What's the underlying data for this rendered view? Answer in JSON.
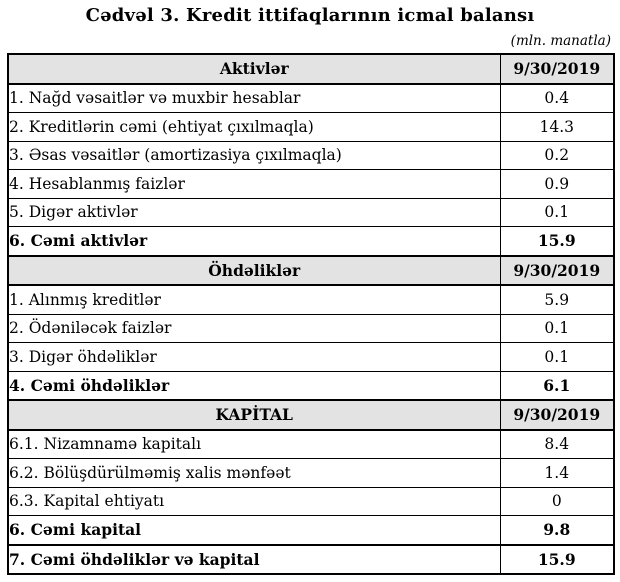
{
  "page": {
    "title": "Cədvəl 3. Kredit ittifaqlarının icmal balansı",
    "unit_note": "(mln. manatla)"
  },
  "colors": {
    "section_header_bg": "#e3e3e3",
    "border": "#000000",
    "text": "#000000"
  },
  "table": {
    "sections": [
      {
        "header_label": "Aktivlər",
        "header_date": "9/30/2019",
        "rows": [
          {
            "label": "1. Nağd vəsaitlər və muxbir hesablar",
            "value": "0.4",
            "bold": false
          },
          {
            "label": "2. Kreditlərin cəmi (ehtiyat çıxılmaqla)",
            "value": "14.3",
            "bold": false
          },
          {
            "label": "3. Əsas vəsaitlər (amortizasiya çıxılmaqla)",
            "value": "0.2",
            "bold": false
          },
          {
            "label": "4. Hesablanmış faizlər",
            "value": "0.9",
            "bold": false
          },
          {
            "label": "5. Digər aktivlər",
            "value": "0.1",
            "bold": false
          },
          {
            "label": "6. Cəmi aktivlər",
            "value": "15.9",
            "bold": true
          }
        ]
      },
      {
        "header_label": "Öhdəliklər",
        "header_date": "9/30/2019",
        "rows": [
          {
            "label": "1. Alınmış kreditlər",
            "value": "5.9",
            "bold": false
          },
          {
            "label": "2. Ödəniləcək faizlər",
            "value": "0.1",
            "bold": false
          },
          {
            "label": "3. Digər öhdəliklər",
            "value": "0.1",
            "bold": false
          },
          {
            "label": "4. Cəmi öhdəliklər",
            "value": "6.1",
            "bold": true
          }
        ]
      },
      {
        "header_label": "KAPİTAL",
        "header_date": "9/30/2019",
        "rows": [
          {
            "label": "6.1. Nizamnamə kapitalı",
            "value": "8.4",
            "bold": false
          },
          {
            "label": "6.2. Bölüşdürülməmiş xalis mənfəət",
            "value": "1.4",
            "bold": false
          },
          {
            "label": "6.3. Kapital ehtiyatı",
            "value": "0",
            "bold": false
          },
          {
            "label": "6. Cəmi kapital",
            "value": "9.8",
            "bold": true
          },
          {
            "label": "7. Cəmi öhdəliklər və kapital",
            "value": "15.9",
            "bold": true
          }
        ]
      }
    ]
  }
}
